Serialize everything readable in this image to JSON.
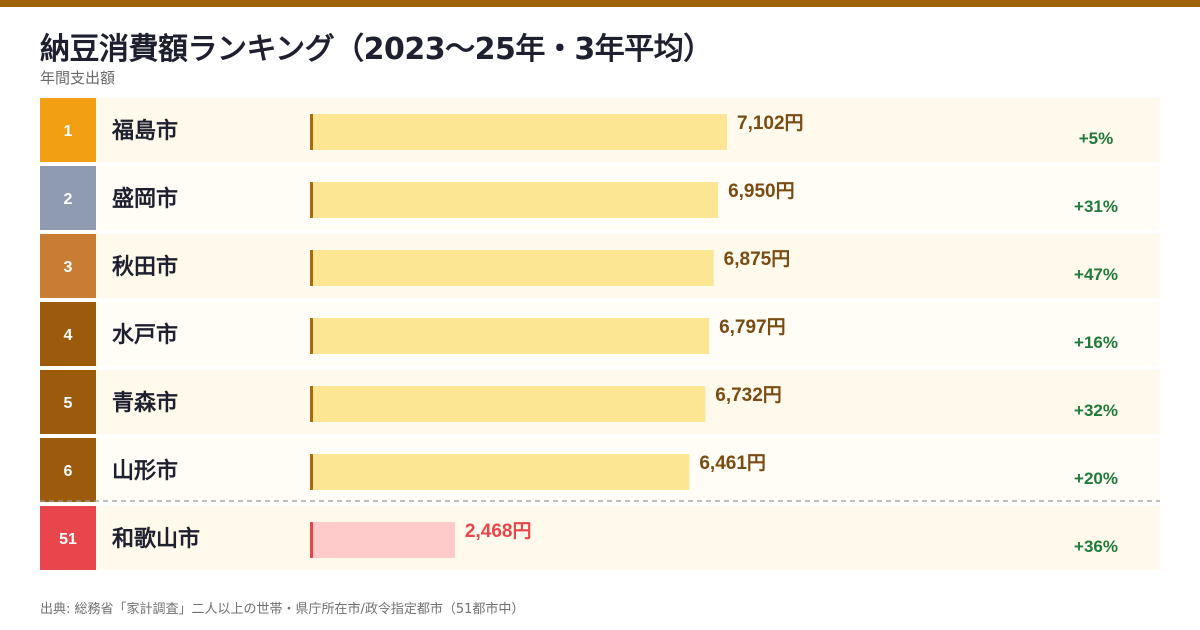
{
  "header": {
    "title": "納豆消費額ランキング（2023〜25年・3年平均）",
    "subtitle": "年間支出額"
  },
  "footer": {
    "source": "出典: 総務省「家計調査」二人以上の世帯・県庁所在市/政令指定都市（51都市中）"
  },
  "colors": {
    "topbar": "#a0630a",
    "rank_gold": "#f29f14",
    "rank_silver": "#8e9bb0",
    "rank_bronze": "#c97d34",
    "rank_other": "#9c5a0c",
    "rank_low": "#e9454c",
    "bar_fill": "#fce593",
    "bar_fill_low": "#ffcaca",
    "bar_edge": "#a66a12",
    "bar_edge_low": "#e9454c",
    "value_text": "#7a4b12",
    "value_text_low": "#e9454c",
    "change_text": "#1f7a3a",
    "row_bg": "#fffaeb",
    "row_bg_alt": "#fffdf6"
  },
  "chart_data": {
    "type": "bar",
    "orientation": "horizontal",
    "title": "納豆消費額ランキング（2023〜25年・3年平均）",
    "subtitle": "年間支出額",
    "unit": "円",
    "rows": [
      {
        "rank": "1",
        "city": "福島市",
        "value": 7102,
        "value_label": "7,102円",
        "change": "+5%",
        "tier": "gold"
      },
      {
        "rank": "2",
        "city": "盛岡市",
        "value": 6950,
        "value_label": "6,950円",
        "change": "+31%",
        "tier": "silver"
      },
      {
        "rank": "3",
        "city": "秋田市",
        "value": 6875,
        "value_label": "6,875円",
        "change": "+47%",
        "tier": "bronze"
      },
      {
        "rank": "4",
        "city": "水戸市",
        "value": 6797,
        "value_label": "6,797円",
        "change": "+16%",
        "tier": "other"
      },
      {
        "rank": "5",
        "city": "青森市",
        "value": 6732,
        "value_label": "6,732円",
        "change": "+32%",
        "tier": "other"
      },
      {
        "rank": "6",
        "city": "山形市",
        "value": 6461,
        "value_label": "6,461円",
        "change": "+20%",
        "tier": "other"
      },
      {
        "rank": "51",
        "city": "和歌山市",
        "value": 2468,
        "value_label": "2,468円",
        "change": "+36%",
        "tier": "low"
      }
    ],
    "xlim": [
      0,
      7102
    ]
  }
}
